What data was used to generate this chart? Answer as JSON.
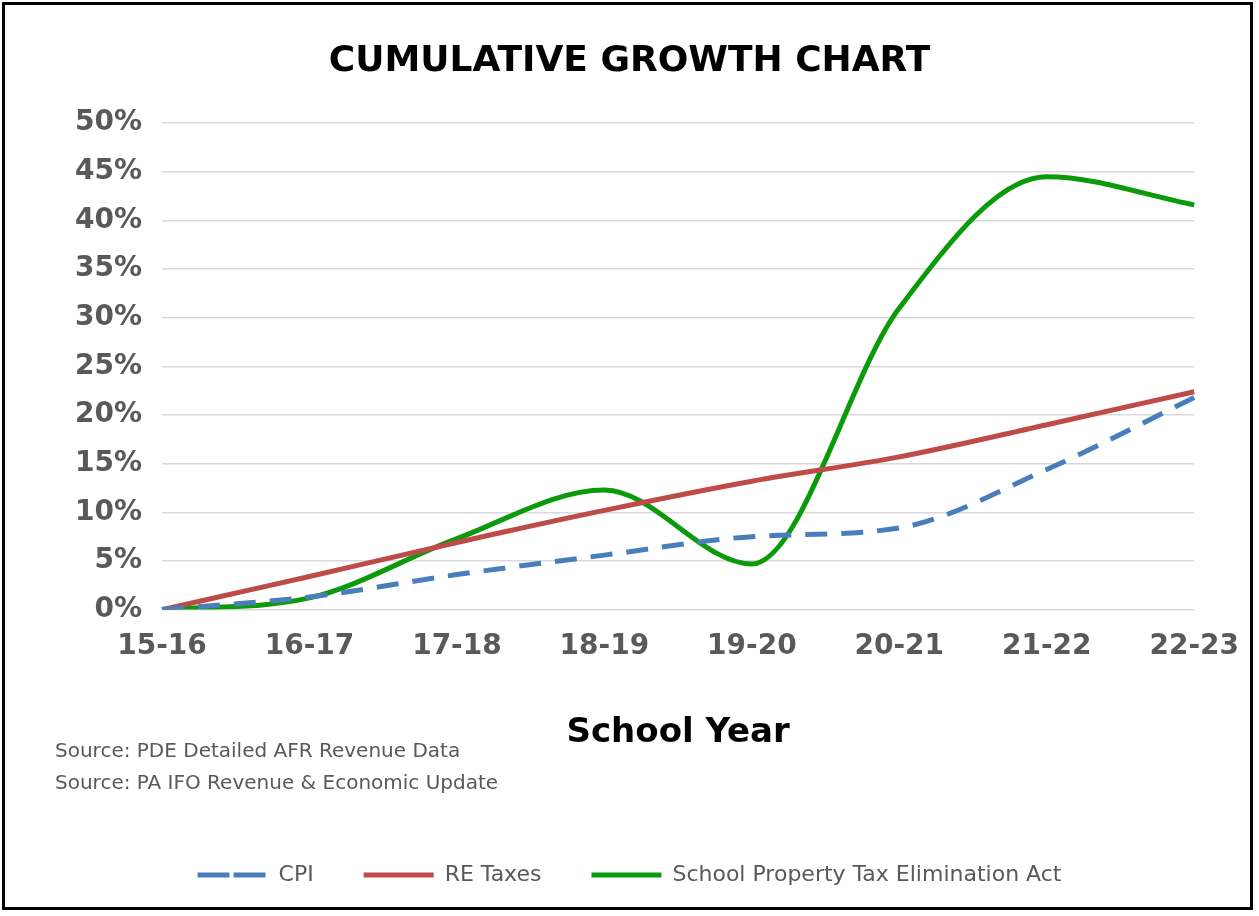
{
  "chart_data": {
    "type": "line",
    "title": "CUMULATIVE GROWTH CHART",
    "xlabel": "School Year",
    "categories": [
      "15-16",
      "16-17",
      "17-18",
      "18-19",
      "19-20",
      "20-21",
      "21-22",
      "22-23"
    ],
    "series": [
      {
        "name": "CPI",
        "color": "#4a7ebb",
        "line_style": "dashed",
        "values": [
          0,
          1.3,
          3.6,
          5.6,
          7.5,
          8.4,
          14.4,
          21.8
        ]
      },
      {
        "name": "RE Taxes",
        "color": "#be4b48",
        "line_style": "solid",
        "values": [
          0,
          3.4,
          6.9,
          10.2,
          13.2,
          15.7,
          19,
          22.4
        ]
      },
      {
        "name": "School Property Tax Elimination Act",
        "color": "#0a9a0a",
        "line_style": "solid",
        "values": [
          0,
          1.2,
          7.3,
          12.3,
          4.7,
          31,
          44.5,
          41.6
        ]
      }
    ],
    "ylim": [
      0,
      50
    ],
    "yticks": [
      {
        "value": 0,
        "label": "0%"
      },
      {
        "value": 5,
        "label": "5%"
      },
      {
        "value": 10,
        "label": "10%"
      },
      {
        "value": 15,
        "label": "15%"
      },
      {
        "value": 20,
        "label": "20%"
      },
      {
        "value": 25,
        "label": "25%"
      },
      {
        "value": 30,
        "label": "30%"
      },
      {
        "value": 35,
        "label": "35%"
      },
      {
        "value": 40,
        "label": "40%"
      },
      {
        "value": 45,
        "label": "45%"
      },
      {
        "value": 50,
        "label": "50%"
      }
    ],
    "grid": "y",
    "legend": "bottom",
    "marker": "none",
    "annotations": [
      "Source: PDE Detailed AFR Revenue Data",
      "Source: PA IFO Revenue & Economic Update"
    ]
  }
}
